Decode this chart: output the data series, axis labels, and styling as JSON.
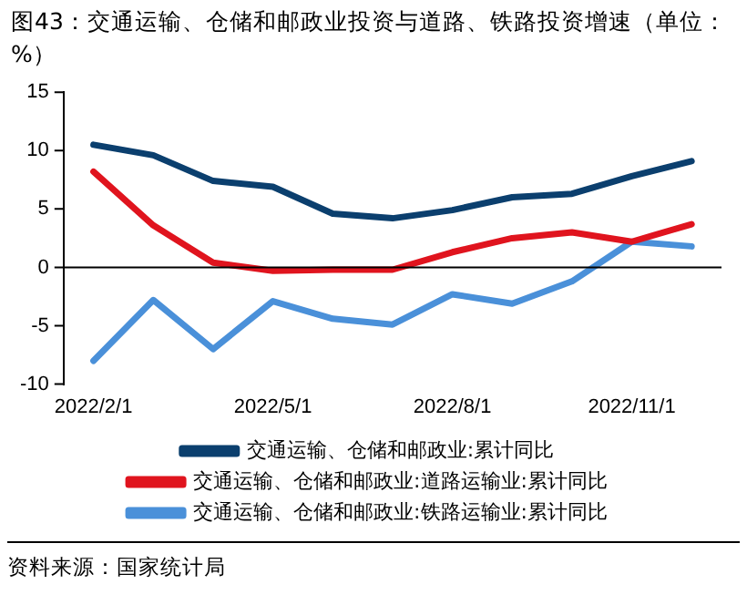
{
  "chart_data": {
    "type": "line",
    "title": "图43：交通运输、仓储和邮政业投资与道路、铁路投资增速（单位：%）",
    "categories": [
      "2022/2/1",
      null,
      null,
      "2022/5/1",
      null,
      null,
      "2022/8/1",
      null,
      null,
      "2022/11/1",
      null
    ],
    "series": [
      {
        "name": "交通运输、仓储和邮政业:累计同比",
        "color": "#0b3f6e",
        "values": [
          10.5,
          9.6,
          7.4,
          6.9,
          4.6,
          4.2,
          4.9,
          6.0,
          6.3,
          7.8,
          9.1
        ]
      },
      {
        "name": "交通运输、仓储和邮政业:道路运输业:累计同比",
        "color": "#e0141e",
        "values": [
          8.2,
          3.6,
          0.4,
          -0.3,
          -0.2,
          -0.2,
          1.3,
          2.5,
          3.0,
          2.2,
          3.7
        ]
      },
      {
        "name": "交通运输、仓储和邮政业:铁路运输业:累计同比",
        "color": "#4a90d9",
        "values": [
          -8.0,
          -2.8,
          -7.0,
          -2.9,
          -4.4,
          -4.9,
          -2.3,
          -3.1,
          -1.2,
          2.2,
          1.8
        ]
      }
    ],
    "ref_lines": [
      {
        "axis": "y",
        "value": 0,
        "color": "#000000",
        "line_style": "solid"
      }
    ],
    "ylim": [
      -10,
      15
    ],
    "yticks": [
      -10,
      -5,
      0,
      5,
      10,
      15
    ],
    "grid": false,
    "legend": "bottom",
    "marker": "none",
    "line_style": "solid",
    "annotations": [
      "资料来源：国家统计局"
    ]
  }
}
